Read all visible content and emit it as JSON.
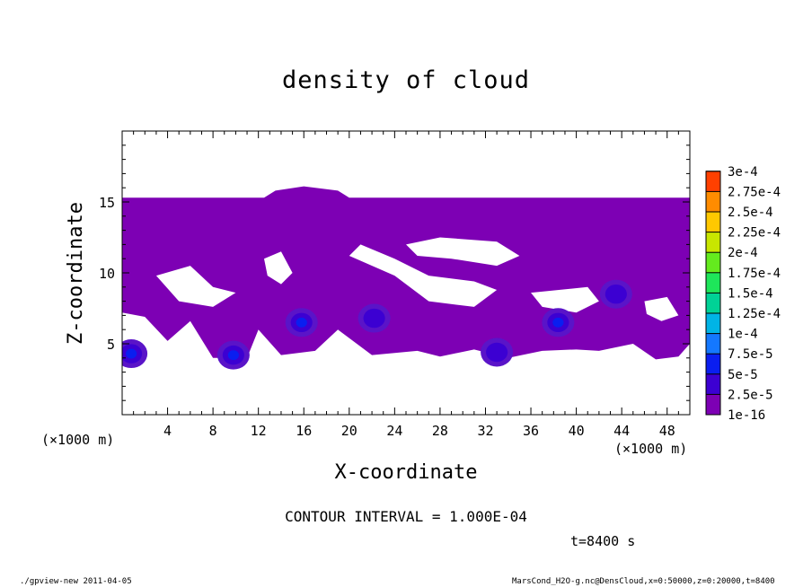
{
  "chart_data": {
    "type": "heatmap",
    "title": "density of cloud",
    "xlabel": "X-coordinate",
    "ylabel": "Z-coordinate",
    "x_unit_label": "(×1000 m)",
    "y_unit_label": "(×1000 m)",
    "xlim": [
      0,
      50
    ],
    "ylim": [
      0,
      20
    ],
    "x_ticks": [
      4,
      8,
      12,
      16,
      20,
      24,
      28,
      32,
      36,
      40,
      44,
      48
    ],
    "y_ticks": [
      5,
      10,
      15
    ],
    "colorbar": {
      "levels": [
        "1e-16",
        "2.5e-5",
        "5e-5",
        "7.5e-5",
        "1e-4",
        "1.25e-4",
        "1.5e-4",
        "1.75e-4",
        "2e-4",
        "2.25e-4",
        "2.5e-4",
        "2.75e-4",
        "3e-4"
      ],
      "colors": [
        "#7d00b4",
        "#3c00d2",
        "#0a1ef0",
        "#1478ff",
        "#00b4e6",
        "#00d296",
        "#1ee65a",
        "#64eb1e",
        "#c8e600",
        "#ffc800",
        "#ff8c00",
        "#ff4000",
        "#f08080"
      ]
    },
    "field": {
      "background_color": "#7d00b4",
      "top_z": 15.3,
      "bottom_z_range": [
        3.8,
        7.3
      ],
      "max_value_approx": "5e-5",
      "cloud_cores": [
        {
          "x": 15.8,
          "z": 6.5,
          "level": "5e-5"
        },
        {
          "x": 9.8,
          "z": 4.2,
          "level": "5e-5"
        },
        {
          "x": 22.2,
          "z": 6.8,
          "level": "2.5e-5"
        },
        {
          "x": 38.4,
          "z": 6.5,
          "level": "5e-5"
        },
        {
          "x": 43.5,
          "z": 8.5,
          "level": "2.5e-5"
        },
        {
          "x": 33.0,
          "z": 4.4,
          "level": "2.5e-5"
        },
        {
          "x": 0.8,
          "z": 4.3,
          "level": "5e-5"
        }
      ]
    }
  },
  "annotations": {
    "contour_interval": "CONTOUR INTERVAL = 1.000E-04",
    "time": "t=8400 s",
    "footer_left": "./gpview-new  2011-04-05",
    "footer_right": "MarsCond_H2O-g.nc@DensCloud,x=0:50000,z=0:20000,t=8400"
  }
}
